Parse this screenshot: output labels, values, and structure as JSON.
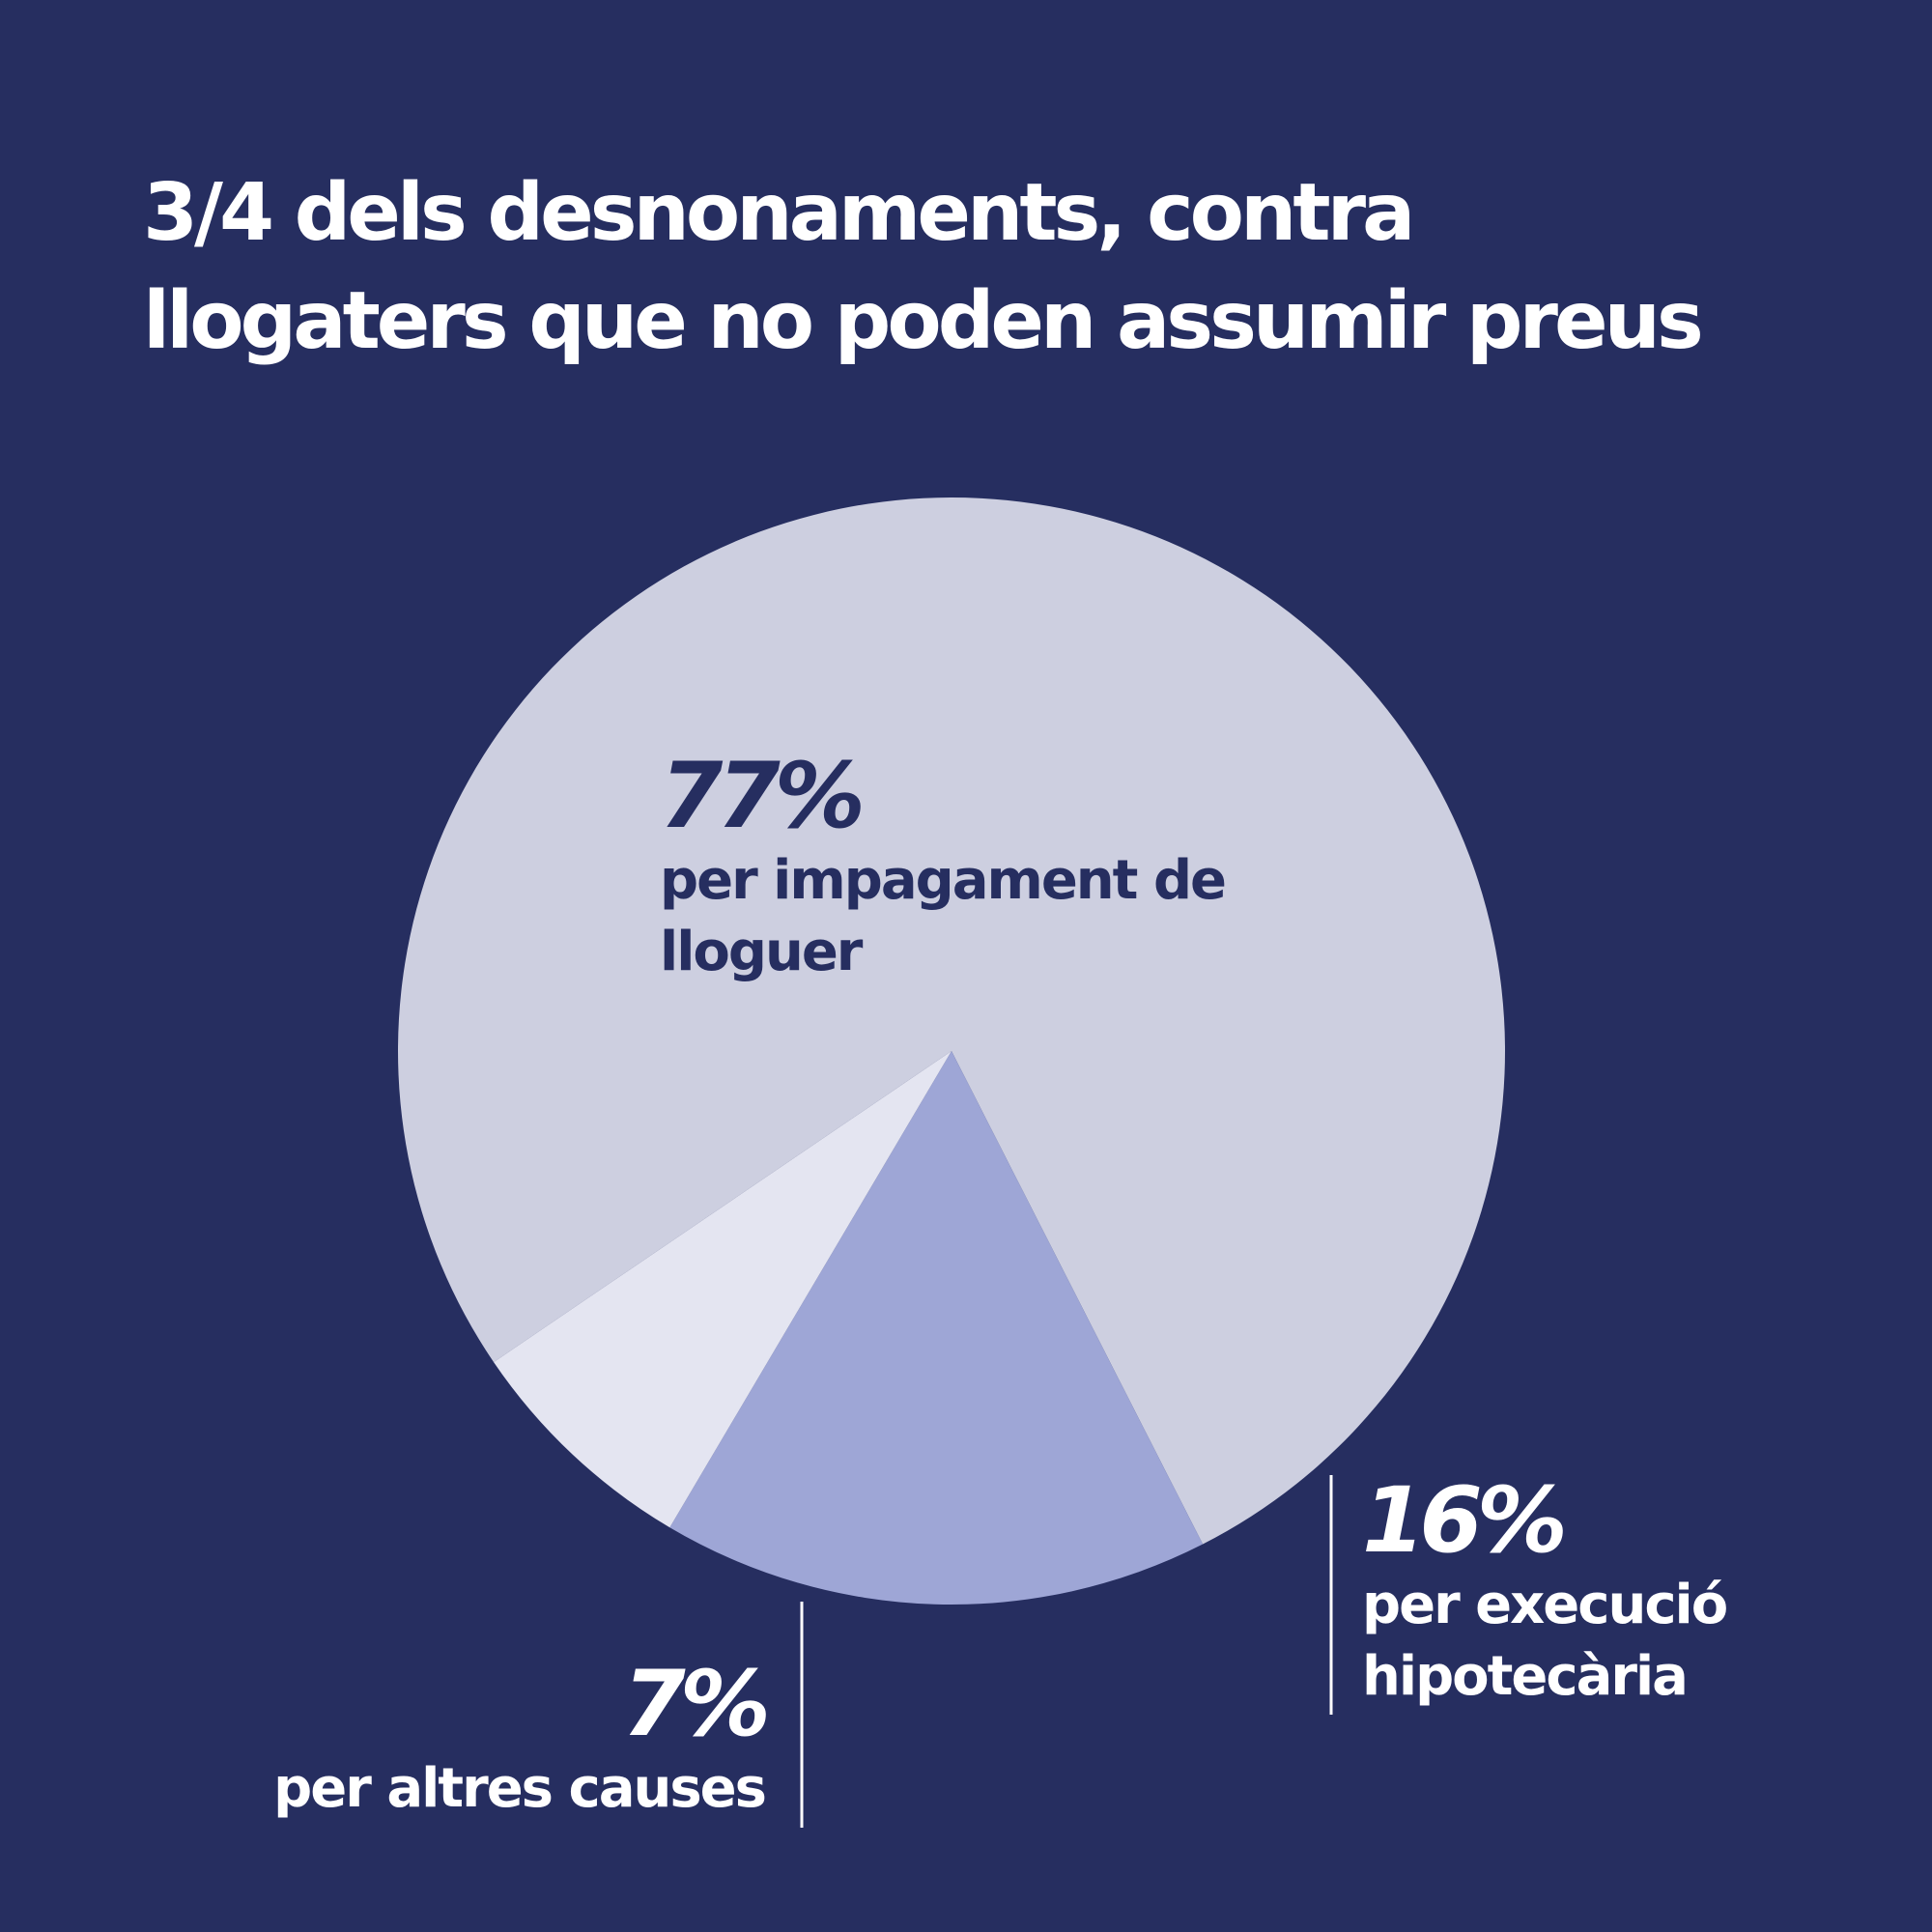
{
  "title": {
    "line1": "3/4 dels desnonaments, contra",
    "line2": "llogaters que no poden assumir preus"
  },
  "colors": {
    "background": "#262e60",
    "slice_impagament": "#cdcfe0",
    "slice_execucio": "#9ea6d6",
    "slice_altres": "#e4e5f1",
    "label_dark": "#262e60",
    "label_light": "#ffffff"
  },
  "chart_data": {
    "type": "pie",
    "title": "3/4 dels desnonaments, contra llogaters que no poden assumir preus",
    "unit": "%",
    "slices": [
      {
        "label": "per impagament de lloguer",
        "value": 77,
        "value_label": "77%",
        "color": "#cdcfe0"
      },
      {
        "label": "per execució hipotecària",
        "value": 16,
        "value_label": "16%",
        "color": "#9ea6d6"
      },
      {
        "label": "per altres causes",
        "value": 7,
        "value_label": "7%",
        "color": "#e4e5f1"
      }
    ]
  },
  "labels": {
    "impagament": {
      "pct": "77%",
      "line1": "per impagament de",
      "line2": "lloguer"
    },
    "execucio": {
      "pct": "16%",
      "line1": "per execució",
      "line2": "hipotecària"
    },
    "altres": {
      "pct": "7%",
      "line1": "per altres causes"
    }
  }
}
